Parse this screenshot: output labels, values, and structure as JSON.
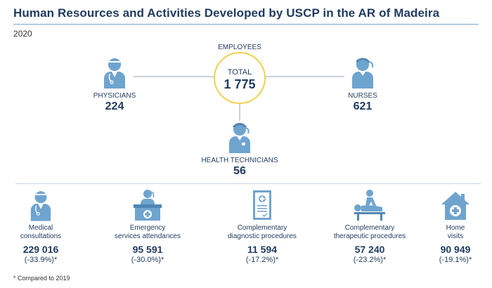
{
  "title": "Human Resources and Activities Developed by USCP in the AR of Madeira",
  "year": "2020",
  "employees": {
    "header": "EMPLOYEES",
    "total_label": "TOTAL",
    "total_value": "1 775",
    "physicians": {
      "label": "PHYSICIANS",
      "value": "224"
    },
    "nurses": {
      "label": "NURSES",
      "value": "621"
    },
    "technicians": {
      "label": "HEALTH TECHNICIANS",
      "value": "56"
    }
  },
  "activities": [
    {
      "line1": "Medical",
      "line2": "consultations",
      "value": "229 016",
      "change": "(-33.9%)*",
      "icon": "doctor-icon"
    },
    {
      "line1": "Emergency",
      "line2": "services attendances",
      "value": "95 591",
      "change": "(-30.0%)*",
      "icon": "reception-desk-icon"
    },
    {
      "line1": "Complementary",
      "line2": "diagnostic procedures",
      "value": "11 594",
      "change": "(-17.2%)*",
      "icon": "medical-document-icon"
    },
    {
      "line1": "Complementary",
      "line2": "therapeutic procedures",
      "value": "57 240",
      "change": "(-23.2%)*",
      "icon": "massage-therapy-icon"
    },
    {
      "line1": "Home",
      "line2": "visits",
      "value": "90 949",
      "change": "(-19.1%)*",
      "icon": "home-medical-icon"
    }
  ],
  "footnote": "* Compared to 2019",
  "colors": {
    "navy": "#1f3a5f",
    "icon": "#6fa4cf",
    "circle_border": "#f2d04b",
    "rule": "#7fa8c9"
  }
}
